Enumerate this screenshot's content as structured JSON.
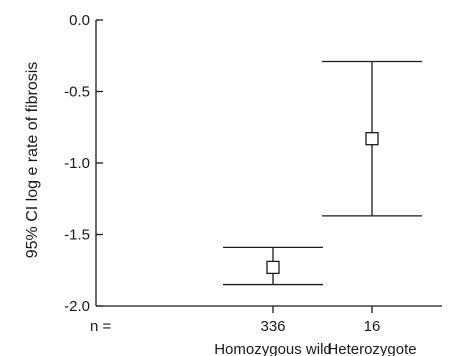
{
  "chart_data": {
    "type": "scatter",
    "subtype": "point estimate with 95% CI error bars",
    "ylabel": "95% CI log e rate of fibrosis",
    "ylim": [
      -2.0,
      0.0
    ],
    "yticks": [
      0.0,
      -0.5,
      -1.0,
      -1.5,
      -2.0
    ],
    "ytick_labels": [
      "0.0",
      "-0.5",
      "-1.0",
      "-1.5",
      "-2.0"
    ],
    "n_label": "n =",
    "categories": [
      "Homozygous wild",
      "Heterozygote"
    ],
    "points": [
      {
        "category": "Homozygous wild",
        "n": "336",
        "estimate": -1.73,
        "ci_low": -1.85,
        "ci_high": -1.59
      },
      {
        "category": "Heterozygote",
        "n": "16",
        "estimate": -0.83,
        "ci_low": -1.37,
        "ci_high": -0.29
      }
    ],
    "grid": false,
    "marker": "open-square"
  }
}
